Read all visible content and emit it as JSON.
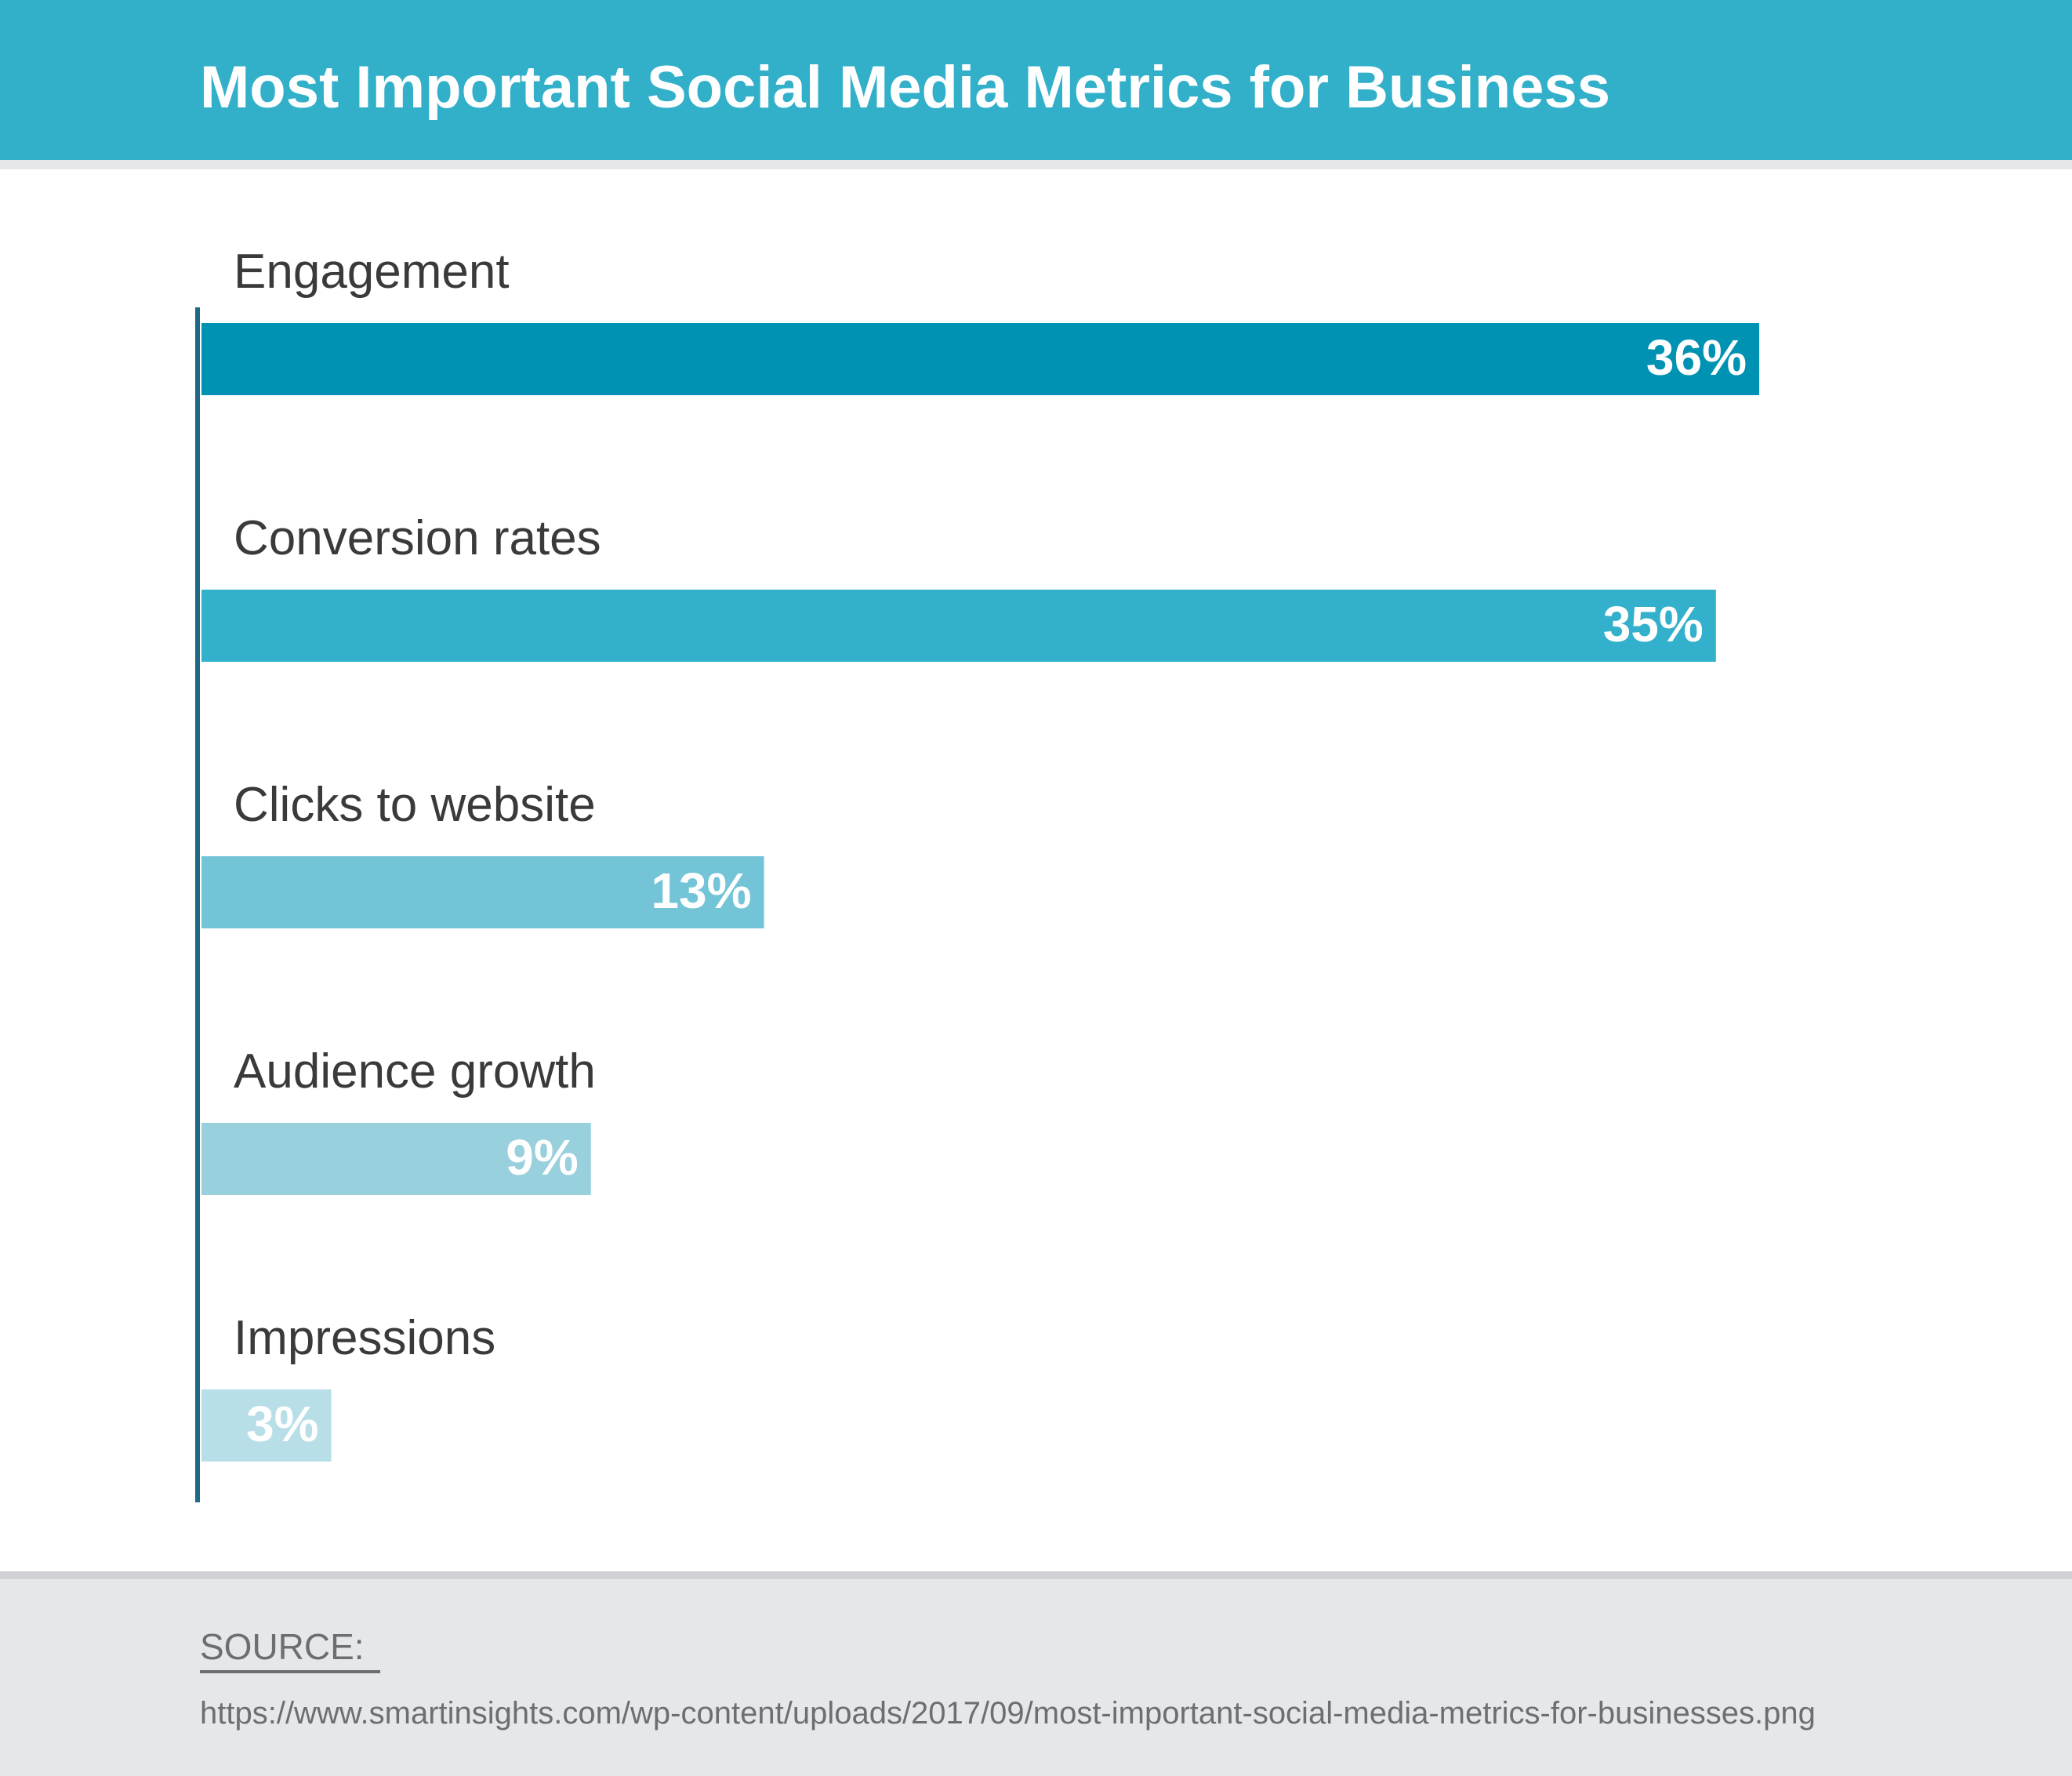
{
  "header": {
    "title": "Most Important Social Media Metrics for Business"
  },
  "colors": {
    "header_bg": "#32b0ca",
    "axis": "#1c6a86",
    "label": "#3a3a3a",
    "bars": [
      "#0092b3",
      "#33b0cb",
      "#73c4d7",
      "#99d0dd",
      "#b8dfe8"
    ]
  },
  "chart_data": {
    "type": "bar",
    "orientation": "horizontal",
    "title": "Most Important Social Media Metrics for Business",
    "categories": [
      "Engagement",
      "Conversion rates",
      "Clicks to website",
      "Audience growth",
      "Impressions"
    ],
    "values": [
      36,
      35,
      13,
      9,
      3
    ],
    "value_labels": [
      "36%",
      "35%",
      "13%",
      "9%",
      "3%"
    ],
    "unit": "%",
    "xlabel": "",
    "ylabel": "",
    "xlim": [
      0,
      36
    ],
    "grid": false,
    "legend": "none"
  },
  "footer": {
    "source_label": "SOURCE:",
    "source_url": "https://www.smartinsights.com/wp-content/uploads/2017/09/most-important-social-media-metrics-for-businesses.png"
  }
}
